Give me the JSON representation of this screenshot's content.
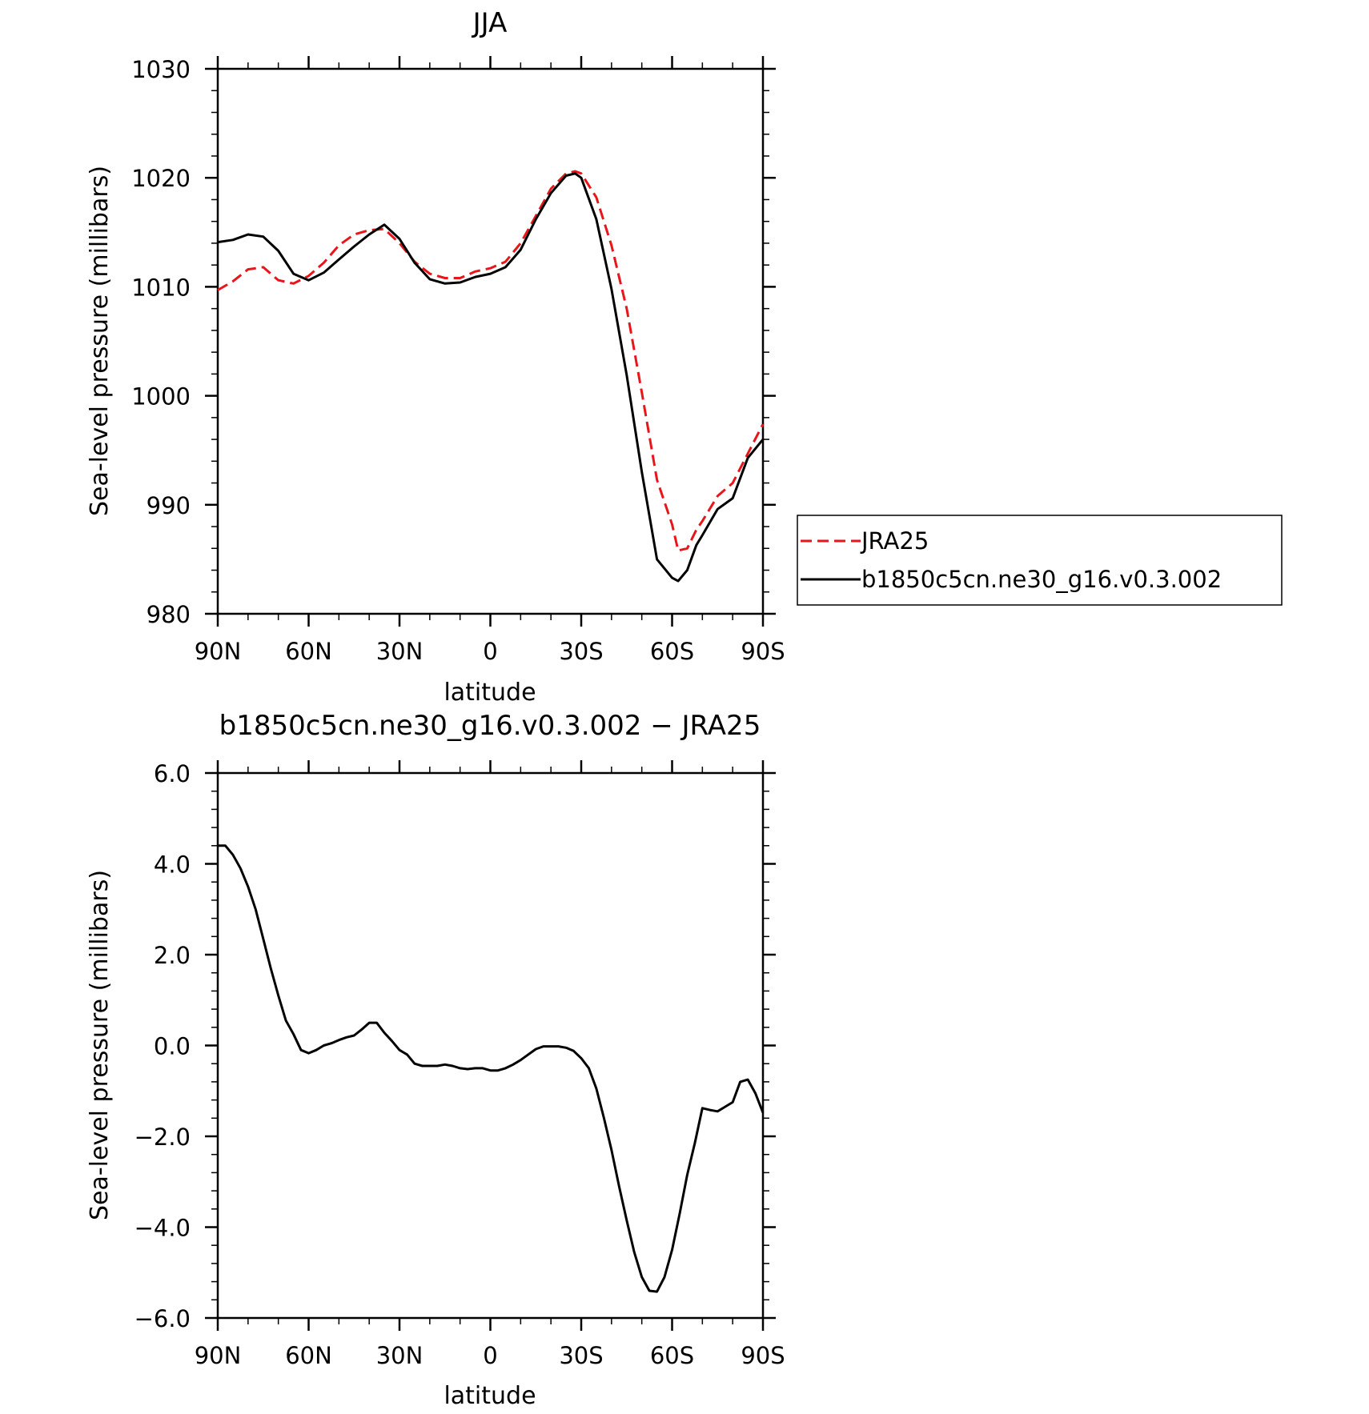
{
  "chart_data": [
    {
      "type": "line",
      "title": "JJA",
      "xlabel": "latitude",
      "ylabel": "Sea-level pressure (millibars)",
      "xlim": [
        90,
        -90
      ],
      "ylim": [
        980,
        1030
      ],
      "xticks": [
        90,
        60,
        30,
        0,
        -30,
        -60,
        -90
      ],
      "xtick_labels": [
        "90N",
        "60N",
        "30N",
        "0",
        "30S",
        "60S",
        "90S"
      ],
      "yticks": [
        980,
        990,
        1000,
        1010,
        1020,
        1030
      ],
      "ytick_labels": [
        "980",
        "990",
        "1000",
        "1010",
        "1020",
        "1030"
      ],
      "legend_position": "right",
      "series": [
        {
          "name": "JRA25",
          "color": "#e8161b",
          "dashed": true,
          "x": [
            90,
            85,
            80,
            75,
            70,
            65,
            60,
            55,
            50,
            45,
            40,
            35,
            30,
            25,
            20,
            15,
            10,
            5,
            0,
            -5,
            -10,
            -15,
            -20,
            -25,
            -28,
            -30,
            -35,
            -40,
            -45,
            -50,
            -55,
            -60,
            -62,
            -65,
            -68,
            -70,
            -75,
            -80,
            -85,
            -90
          ],
          "y": [
            1009.7,
            1010.5,
            1011.6,
            1011.8,
            1010.6,
            1010.3,
            1011.0,
            1012.2,
            1013.8,
            1014.8,
            1015.2,
            1015.3,
            1014.0,
            1012.3,
            1011.2,
            1010.8,
            1010.8,
            1011.4,
            1011.7,
            1012.3,
            1014.0,
            1016.5,
            1019.0,
            1020.4,
            1020.6,
            1020.4,
            1018.2,
            1013.8,
            1008.0,
            1000.3,
            992.3,
            988.2,
            985.8,
            986.0,
            987.7,
            988.5,
            990.8,
            992.0,
            994.7,
            997.4
          ]
        },
        {
          "name": "b1850c5cn.ne30_g16.v0.3.002",
          "color": "#000000",
          "dashed": false,
          "x": [
            90,
            85,
            80,
            75,
            70,
            65,
            60,
            55,
            50,
            45,
            40,
            35,
            30,
            25,
            20,
            15,
            10,
            5,
            0,
            -5,
            -10,
            -15,
            -20,
            -25,
            -28,
            -30,
            -35,
            -40,
            -45,
            -50,
            -55,
            -60,
            -62,
            -65,
            -68,
            -70,
            -75,
            -80,
            -85,
            -90
          ],
          "y": [
            1014.1,
            1014.3,
            1014.8,
            1014.6,
            1013.3,
            1011.2,
            1010.6,
            1011.3,
            1012.5,
            1013.7,
            1014.8,
            1015.7,
            1014.4,
            1012.2,
            1010.7,
            1010.3,
            1010.4,
            1010.9,
            1011.2,
            1011.8,
            1013.4,
            1016.2,
            1018.6,
            1020.2,
            1020.4,
            1020.0,
            1016.2,
            1009.8,
            1001.9,
            993.0,
            985.0,
            983.3,
            983.0,
            984.0,
            986.3,
            987.2,
            989.6,
            990.6,
            994.3,
            996.0
          ]
        }
      ]
    },
    {
      "type": "line",
      "title": "b1850c5cn.ne30_g16.v0.3.002 − JRA25",
      "xlabel": "latitude",
      "ylabel": "Sea-level pressure (millibars)",
      "xlim": [
        90,
        -90
      ],
      "ylim": [
        -6,
        6
      ],
      "xticks": [
        90,
        60,
        30,
        0,
        -30,
        -60,
        -90
      ],
      "xtick_labels": [
        "90N",
        "60N",
        "30N",
        "0",
        "30S",
        "60S",
        "90S"
      ],
      "yticks": [
        -6,
        -4,
        -2,
        0,
        2,
        4,
        6
      ],
      "ytick_labels": [
        "−6.0",
        "−4.0",
        "−2.0",
        "0.0",
        "2.0",
        "4.0",
        "6.0"
      ],
      "series": [
        {
          "color": "#000000",
          "dashed": false,
          "x": [
            90,
            87.5,
            85,
            82.5,
            80,
            77.5,
            75,
            72.5,
            70,
            67.5,
            65,
            62.5,
            60,
            57.5,
            55,
            52.5,
            50,
            47.5,
            45,
            42.5,
            40,
            37.5,
            35,
            32.5,
            30,
            27.5,
            25,
            22.5,
            20,
            17.5,
            15,
            12.5,
            10,
            7.5,
            5,
            2.5,
            0,
            -2.5,
            -5,
            -7.5,
            -10,
            -12.5,
            -15,
            -17.5,
            -20,
            -22.5,
            -25,
            -27.5,
            -30,
            -32.5,
            -35,
            -37.5,
            -40,
            -42.5,
            -45,
            -47.5,
            -50,
            -52.5,
            -55,
            -57.5,
            -60,
            -62.5,
            -65,
            -67.5,
            -70,
            -72.5,
            -75,
            -77.5,
            -80,
            -82.5,
            -85,
            -87.5,
            -90
          ],
          "y": [
            4.4,
            4.4,
            4.2,
            3.9,
            3.5,
            3.0,
            2.35,
            1.7,
            1.1,
            0.55,
            0.25,
            -0.1,
            -0.17,
            -0.1,
            0.0,
            0.05,
            0.12,
            0.18,
            0.22,
            0.35,
            0.5,
            0.5,
            0.28,
            0.1,
            -0.1,
            -0.2,
            -0.4,
            -0.45,
            -0.45,
            -0.45,
            -0.42,
            -0.45,
            -0.5,
            -0.52,
            -0.5,
            -0.5,
            -0.55,
            -0.55,
            -0.5,
            -0.42,
            -0.32,
            -0.2,
            -0.08,
            -0.02,
            -0.02,
            -0.02,
            -0.05,
            -0.12,
            -0.28,
            -0.5,
            -0.95,
            -1.6,
            -2.3,
            -3.1,
            -3.85,
            -4.55,
            -5.1,
            -5.4,
            -5.42,
            -5.1,
            -4.5,
            -3.7,
            -2.85,
            -2.15,
            -1.38,
            -1.42,
            -1.45,
            -1.35,
            -1.25,
            -0.8,
            -0.75,
            -1.05,
            -1.48
          ]
        }
      ]
    }
  ]
}
